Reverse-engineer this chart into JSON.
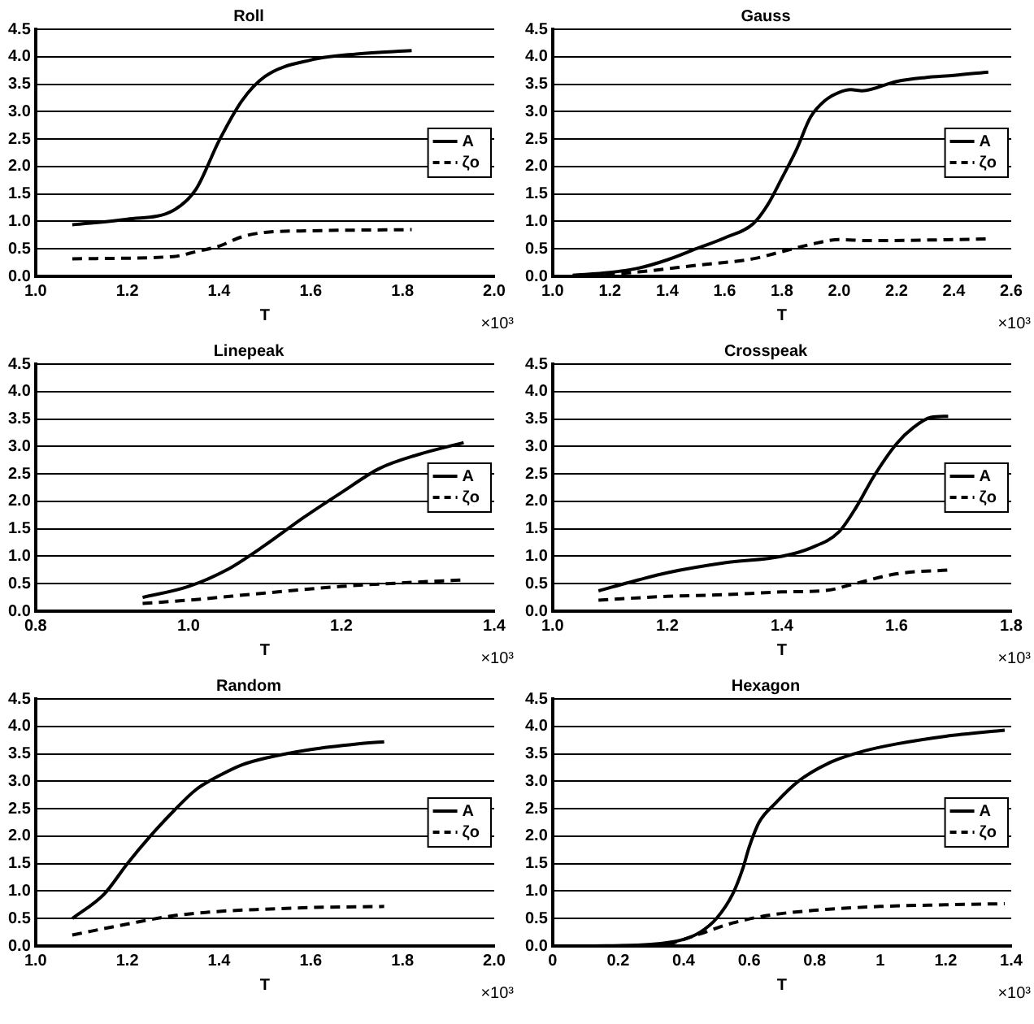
{
  "chart_data": [
    {
      "type": "line",
      "title": "Roll",
      "xlabel": "T",
      "annotations": [
        "×10³"
      ],
      "grid": "y",
      "legend": "right",
      "line_style": "solid",
      "marker": "none",
      "xlim": [
        1.0,
        2.0
      ],
      "xticks": [
        {
          "value": 1.0,
          "label": "1.0"
        },
        {
          "value": 1.2,
          "label": "1.2"
        },
        {
          "value": 1.4,
          "label": "1.4"
        },
        {
          "value": 1.6,
          "label": "1.6"
        },
        {
          "value": 1.8,
          "label": "1.8"
        },
        {
          "value": 2.0,
          "label": "2.0"
        }
      ],
      "ylim": [
        0,
        4.5
      ],
      "yticks": [
        {
          "value": 0,
          "label": "0.0"
        },
        {
          "value": 0.5,
          "label": "0.5"
        },
        {
          "value": 1,
          "label": "1.0"
        },
        {
          "value": 1.5,
          "label": "1.5"
        },
        {
          "value": 2,
          "label": "2.0"
        },
        {
          "value": 2.5,
          "label": "2.5"
        },
        {
          "value": 3,
          "label": "3.0"
        },
        {
          "value": 3.5,
          "label": "3.5"
        },
        {
          "value": 4,
          "label": "4.0"
        },
        {
          "value": 4.5,
          "label": "4.5"
        }
      ],
      "series": [
        {
          "name": "A",
          "color": "#000000",
          "x": [
            1.08,
            1.2,
            1.3,
            1.35,
            1.4,
            1.45,
            1.5,
            1.6,
            1.7,
            1.82
          ],
          "values": [
            0.94,
            1.04,
            1.2,
            1.59,
            2.47,
            3.2,
            3.64,
            3.94,
            4.05,
            4.11
          ]
        },
        {
          "name": "ζo",
          "color": "#000000",
          "line_style": "dashed",
          "x": [
            1.08,
            1.3,
            1.35,
            1.4,
            1.45,
            1.5,
            1.6,
            1.82
          ],
          "values": [
            0.32,
            0.36,
            0.45,
            0.55,
            0.72,
            0.8,
            0.83,
            0.85
          ]
        }
      ]
    },
    {
      "type": "line",
      "title": "Gauss",
      "xlabel": "T",
      "annotations": [
        "×10³"
      ],
      "grid": "y",
      "legend": "right",
      "line_style": "solid",
      "marker": "none",
      "xlim": [
        1.0,
        2.6
      ],
      "xticks": [
        {
          "value": 1.0,
          "label": "1.0"
        },
        {
          "value": 1.2,
          "label": "1.2"
        },
        {
          "value": 1.4,
          "label": "1.4"
        },
        {
          "value": 1.6,
          "label": "1.6"
        },
        {
          "value": 1.8,
          "label": "1.8"
        },
        {
          "value": 2.0,
          "label": "2.0"
        },
        {
          "value": 2.2,
          "label": "2.2"
        },
        {
          "value": 2.4,
          "label": "2.4"
        },
        {
          "value": 2.6,
          "label": "2.6"
        }
      ],
      "ylim": [
        0,
        4.5
      ],
      "yticks": [
        {
          "value": 0,
          "label": "0.0"
        },
        {
          "value": 0.5,
          "label": "0.5"
        },
        {
          "value": 1,
          "label": "1.0"
        },
        {
          "value": 1.5,
          "label": "1.5"
        },
        {
          "value": 2,
          "label": "2.0"
        },
        {
          "value": 2.5,
          "label": "2.5"
        },
        {
          "value": 3,
          "label": "3.0"
        },
        {
          "value": 3.5,
          "label": "3.5"
        },
        {
          "value": 4,
          "label": "4.0"
        },
        {
          "value": 4.5,
          "label": "4.5"
        }
      ],
      "series": [
        {
          "name": "A",
          "color": "#000000",
          "x": [
            1.07,
            1.2,
            1.3,
            1.4,
            1.5,
            1.6,
            1.7,
            1.75,
            1.8,
            1.85,
            1.9,
            1.95,
            2.0,
            2.04,
            2.08,
            2.2,
            2.3,
            2.4,
            2.52
          ],
          "values": [
            0.02,
            0.07,
            0.15,
            0.3,
            0.5,
            0.7,
            0.96,
            1.3,
            1.79,
            2.3,
            2.9,
            3.2,
            3.35,
            3.4,
            3.38,
            3.55,
            3.62,
            3.66,
            3.72
          ]
        },
        {
          "name": "ζo",
          "color": "#000000",
          "line_style": "dashed",
          "x": [
            1.07,
            1.3,
            1.5,
            1.7,
            1.8,
            1.9,
            2.0,
            2.1,
            2.52
          ],
          "values": [
            0,
            0.08,
            0.2,
            0.32,
            0.45,
            0.58,
            0.67,
            0.65,
            0.68
          ]
        }
      ]
    },
    {
      "type": "line",
      "title": "Linepeak",
      "xlabel": "T",
      "annotations": [
        "×10³"
      ],
      "grid": "y",
      "legend": "right",
      "line_style": "solid",
      "marker": "none",
      "xlim": [
        0.8,
        1.4
      ],
      "xticks": [
        {
          "value": 0.8,
          "label": "0.8"
        },
        {
          "value": 1.0,
          "label": "1.0"
        },
        {
          "value": 1.2,
          "label": "1.2"
        },
        {
          "value": 1.4,
          "label": "1.4"
        }
      ],
      "ylim": [
        0,
        4.5
      ],
      "yticks": [
        {
          "value": 0,
          "label": "0.0"
        },
        {
          "value": 0.5,
          "label": "0.5"
        },
        {
          "value": 1,
          "label": "1.0"
        },
        {
          "value": 1.5,
          "label": "1.5"
        },
        {
          "value": 2,
          "label": "2.0"
        },
        {
          "value": 2.5,
          "label": "2.5"
        },
        {
          "value": 3,
          "label": "3.0"
        },
        {
          "value": 3.5,
          "label": "3.5"
        },
        {
          "value": 4,
          "label": "4.0"
        },
        {
          "value": 4.5,
          "label": "4.5"
        }
      ],
      "series": [
        {
          "name": "A",
          "color": "#000000",
          "x": [
            0.94,
            1.0,
            1.05,
            1.1,
            1.15,
            1.2,
            1.25,
            1.3,
            1.36
          ],
          "values": [
            0.25,
            0.45,
            0.75,
            1.2,
            1.7,
            2.16,
            2.6,
            2.85,
            3.07
          ]
        },
        {
          "name": "ζo",
          "color": "#000000",
          "line_style": "dashed",
          "x": [
            0.94,
            1.0,
            1.1,
            1.2,
            1.3,
            1.36
          ],
          "values": [
            0.14,
            0.2,
            0.33,
            0.45,
            0.53,
            0.57
          ]
        }
      ]
    },
    {
      "type": "line",
      "title": "Crosspeak",
      "xlabel": "T",
      "annotations": [
        "×10³"
      ],
      "grid": "y",
      "legend": "right",
      "line_style": "solid",
      "marker": "none",
      "xlim": [
        1.0,
        1.8
      ],
      "xticks": [
        {
          "value": 1.0,
          "label": "1.0"
        },
        {
          "value": 1.2,
          "label": "1.2"
        },
        {
          "value": 1.4,
          "label": "1.4"
        },
        {
          "value": 1.6,
          "label": "1.6"
        },
        {
          "value": 1.8,
          "label": "1.8"
        }
      ],
      "ylim": [
        0,
        4.5
      ],
      "yticks": [
        {
          "value": 0,
          "label": "0.0"
        },
        {
          "value": 0.5,
          "label": "0.5"
        },
        {
          "value": 1,
          "label": "1.0"
        },
        {
          "value": 1.5,
          "label": "1.5"
        },
        {
          "value": 2,
          "label": "2.0"
        },
        {
          "value": 2.5,
          "label": "2.5"
        },
        {
          "value": 3,
          "label": "3.0"
        },
        {
          "value": 3.5,
          "label": "3.5"
        },
        {
          "value": 4,
          "label": "4.0"
        },
        {
          "value": 4.5,
          "label": "4.5"
        }
      ],
      "series": [
        {
          "name": "A",
          "color": "#000000",
          "x": [
            1.08,
            1.15,
            1.2,
            1.3,
            1.4,
            1.45,
            1.5,
            1.53,
            1.56,
            1.6,
            1.63,
            1.66,
            1.69
          ],
          "values": [
            0.37,
            0.57,
            0.7,
            0.88,
            1.0,
            1.15,
            1.45,
            1.9,
            2.45,
            3.05,
            3.35,
            3.53,
            3.55
          ]
        },
        {
          "name": "ζo",
          "color": "#000000",
          "line_style": "dashed",
          "x": [
            1.08,
            1.2,
            1.3,
            1.4,
            1.48,
            1.52,
            1.6,
            1.69
          ],
          "values": [
            0.2,
            0.27,
            0.3,
            0.35,
            0.38,
            0.48,
            0.68,
            0.75
          ]
        }
      ]
    },
    {
      "type": "line",
      "title": "Random",
      "xlabel": "T",
      "annotations": [
        "×10³"
      ],
      "grid": "y",
      "legend": "right",
      "line_style": "solid",
      "marker": "none",
      "xlim": [
        1.0,
        2.0
      ],
      "xticks": [
        {
          "value": 1.0,
          "label": "1.0"
        },
        {
          "value": 1.2,
          "label": "1.2"
        },
        {
          "value": 1.4,
          "label": "1.4"
        },
        {
          "value": 1.6,
          "label": "1.6"
        },
        {
          "value": 1.8,
          "label": "1.8"
        },
        {
          "value": 2.0,
          "label": "2.0"
        }
      ],
      "ylim": [
        0,
        4.5
      ],
      "yticks": [
        {
          "value": 0,
          "label": "0.0"
        },
        {
          "value": 0.5,
          "label": "0.5"
        },
        {
          "value": 1,
          "label": "1.0"
        },
        {
          "value": 1.5,
          "label": "1.5"
        },
        {
          "value": 2,
          "label": "2.0"
        },
        {
          "value": 2.5,
          "label": "2.5"
        },
        {
          "value": 3,
          "label": "3.0"
        },
        {
          "value": 3.5,
          "label": "3.5"
        },
        {
          "value": 4,
          "label": "4.0"
        },
        {
          "value": 4.5,
          "label": "4.5"
        }
      ],
      "series": [
        {
          "name": "A",
          "color": "#000000",
          "x": [
            1.08,
            1.15,
            1.2,
            1.25,
            1.3,
            1.35,
            1.4,
            1.45,
            1.5,
            1.6,
            1.7,
            1.76
          ],
          "values": [
            0.5,
            0.95,
            1.5,
            2.0,
            2.45,
            2.85,
            3.1,
            3.3,
            3.42,
            3.58,
            3.68,
            3.72
          ]
        },
        {
          "name": "ζo",
          "color": "#000000",
          "line_style": "dashed",
          "x": [
            1.08,
            1.2,
            1.3,
            1.4,
            1.5,
            1.6,
            1.76
          ],
          "values": [
            0.2,
            0.4,
            0.55,
            0.63,
            0.67,
            0.7,
            0.72
          ]
        }
      ]
    },
    {
      "type": "line",
      "title": "Hexagon",
      "xlabel": "T",
      "annotations": [
        "×10³"
      ],
      "grid": "y",
      "legend": "right",
      "line_style": "solid",
      "marker": "none",
      "xlim": [
        0,
        1.4
      ],
      "xticks": [
        0,
        0.2,
        0.4,
        0.6,
        0.8,
        1,
        1.2,
        1.4
      ],
      "ylim": [
        0,
        4.5
      ],
      "yticks": [
        {
          "value": 0,
          "label": "0.0"
        },
        {
          "value": 0.5,
          "label": "0.5"
        },
        {
          "value": 1,
          "label": "1.0"
        },
        {
          "value": 1.5,
          "label": "1.5"
        },
        {
          "value": 2,
          "label": "2.0"
        },
        {
          "value": 2.5,
          "label": "2.5"
        },
        {
          "value": 3,
          "label": "3.0"
        },
        {
          "value": 3.5,
          "label": "3.5"
        },
        {
          "value": 4,
          "label": "4.0"
        },
        {
          "value": 4.5,
          "label": "4.5"
        }
      ],
      "series": [
        {
          "name": "A",
          "color": "#000000",
          "x": [
            0.1,
            0.3,
            0.4,
            0.45,
            0.5,
            0.55,
            0.58,
            0.6,
            0.63,
            0.68,
            0.75,
            0.85,
            0.95,
            1.05,
            1.2,
            1.38
          ],
          "values": [
            0,
            0.03,
            0.12,
            0.25,
            0.5,
            0.95,
            1.4,
            1.8,
            2.25,
            2.6,
            3.0,
            3.35,
            3.55,
            3.68,
            3.82,
            3.93
          ]
        },
        {
          "name": "ζo",
          "color": "#000000",
          "line_style": "dashed",
          "x": [
            0.35,
            0.45,
            0.55,
            0.65,
            0.8,
            1.0,
            1.2,
            1.38
          ],
          "values": [
            0.02,
            0.22,
            0.42,
            0.55,
            0.65,
            0.72,
            0.75,
            0.77
          ]
        }
      ]
    }
  ]
}
